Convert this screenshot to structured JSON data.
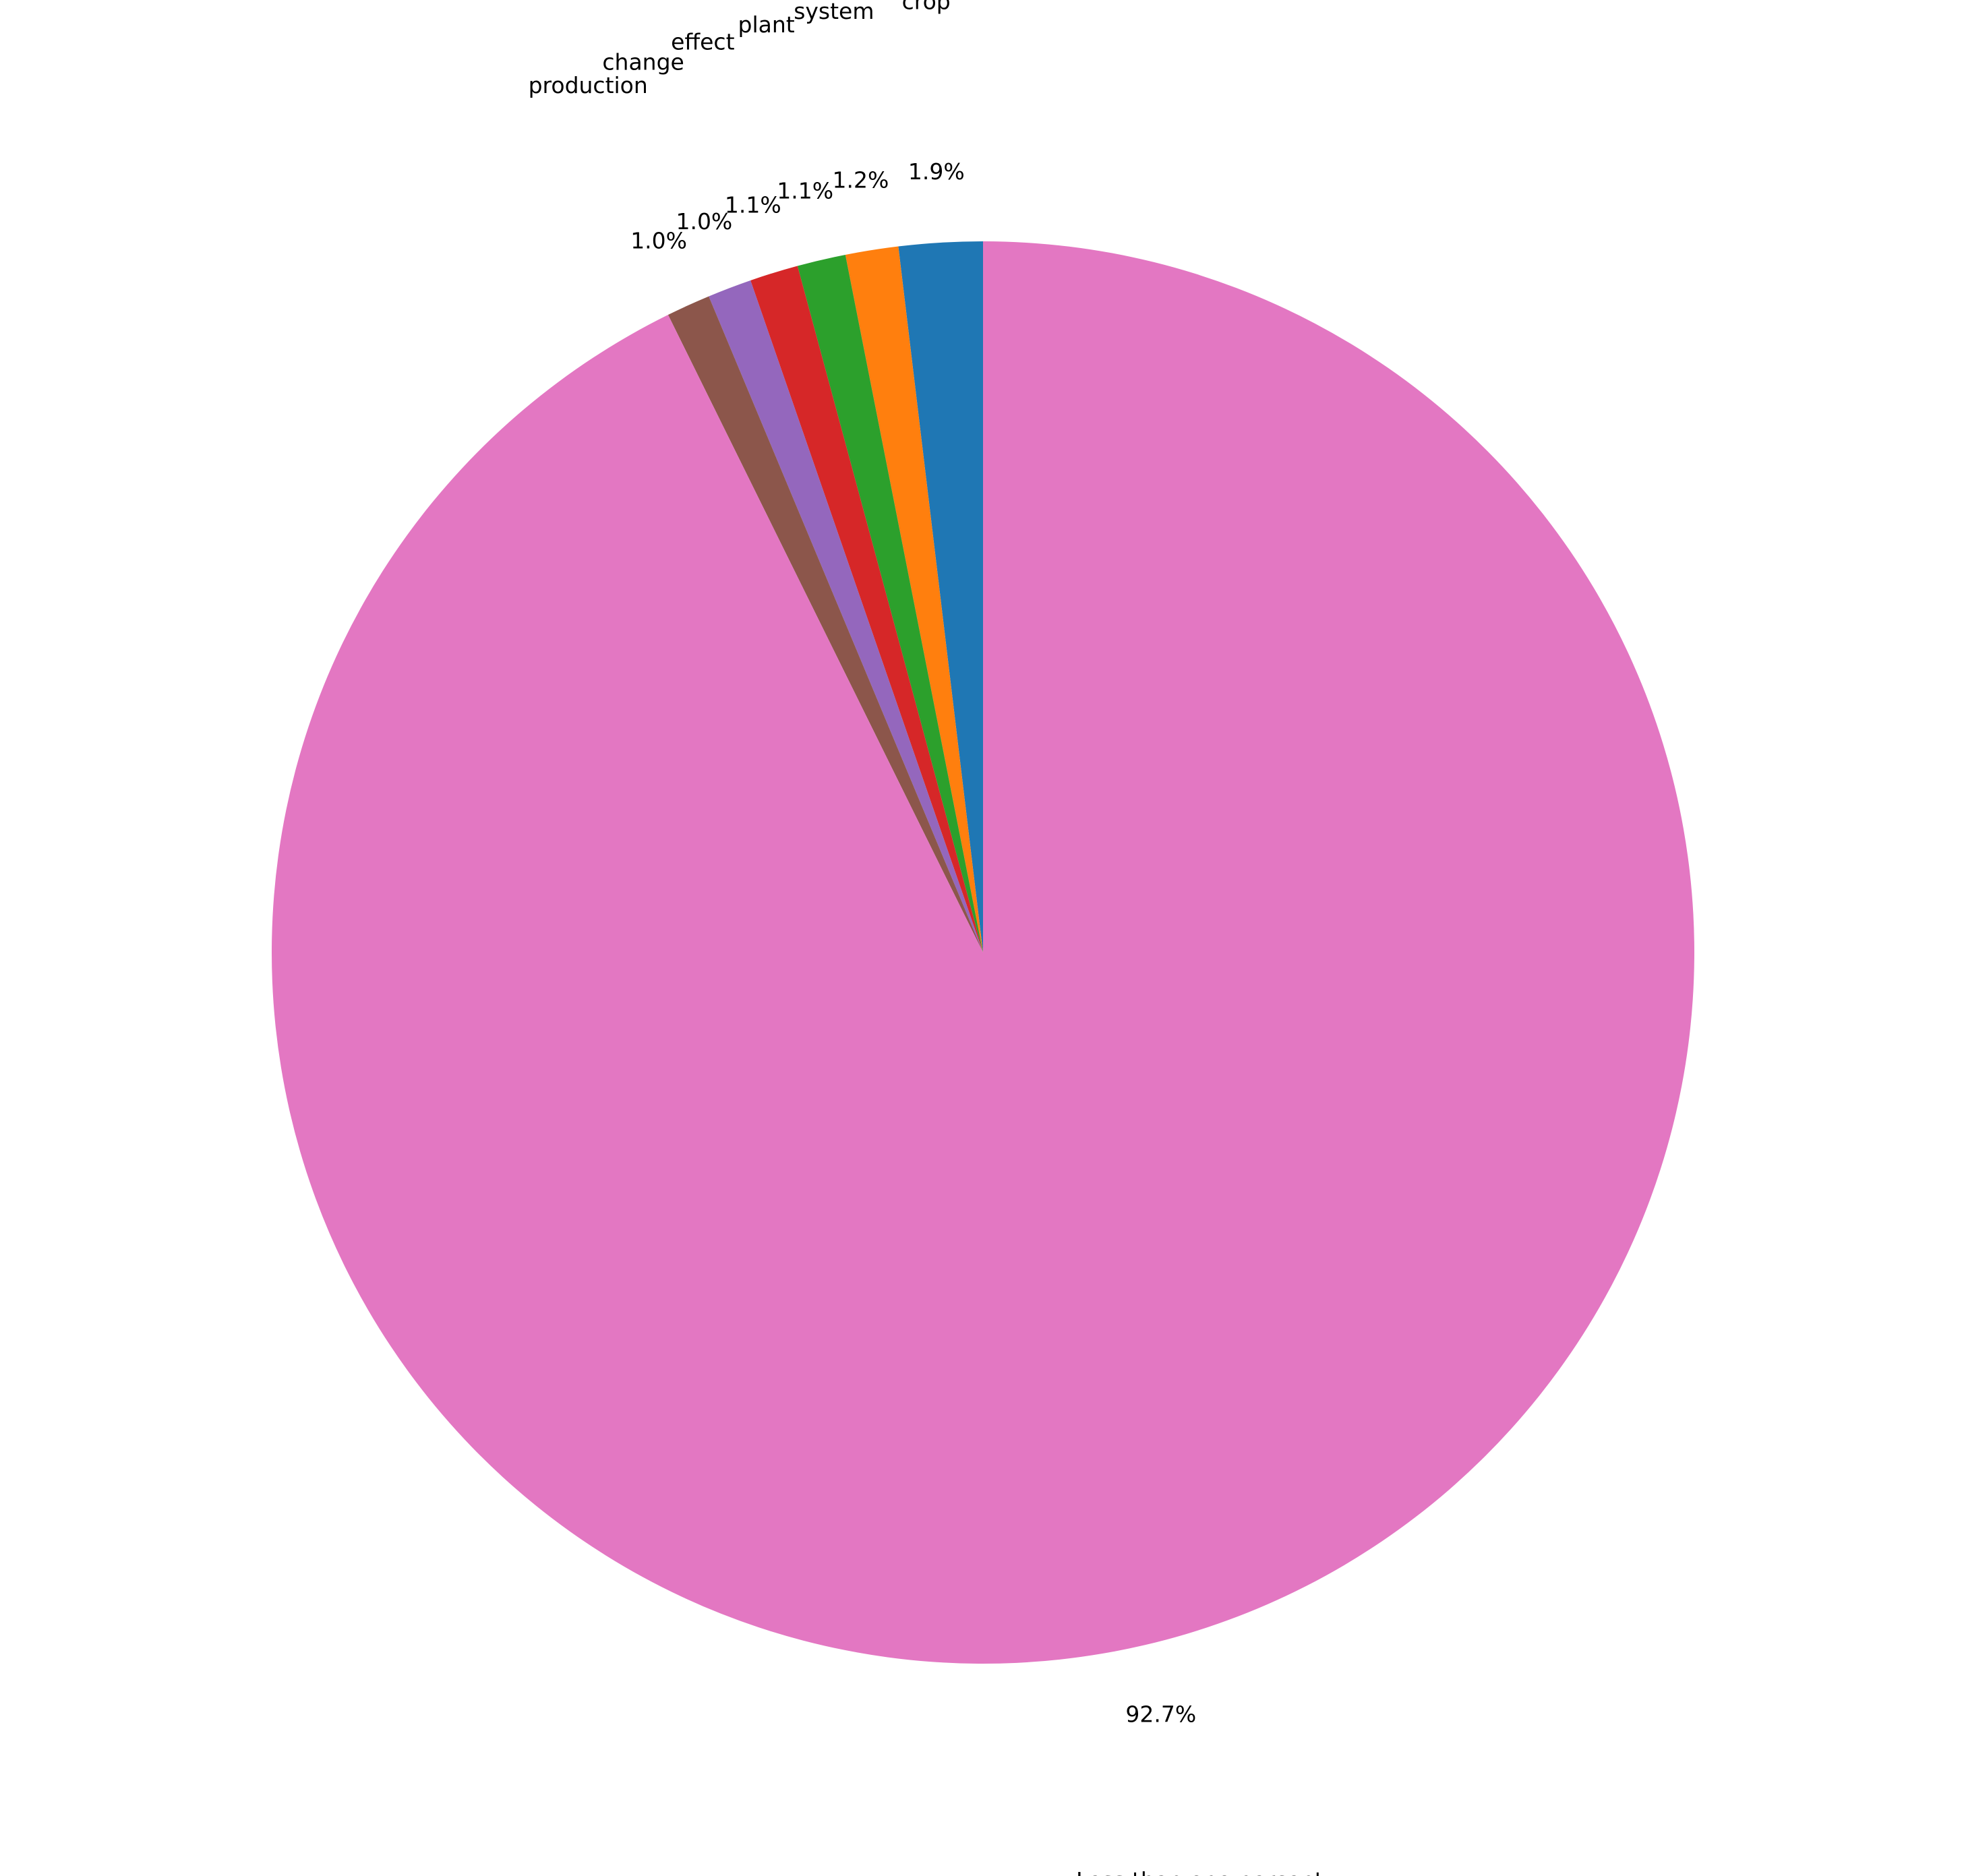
{
  "chart_data": {
    "type": "pie",
    "slices": [
      {
        "label": "crop",
        "value": 1.9,
        "pct_label": "1.9%",
        "color": "#1f77b4"
      },
      {
        "label": "system",
        "value": 1.2,
        "pct_label": "1.2%",
        "color": "#ff7f0e"
      },
      {
        "label": "plant",
        "value": 1.1,
        "pct_label": "1.1%",
        "color": "#2ca02c"
      },
      {
        "label": "effect",
        "value": 1.1,
        "pct_label": "1.1%",
        "color": "#d62728"
      },
      {
        "label": "change",
        "value": 1.0,
        "pct_label": "1.0%",
        "color": "#9467bd"
      },
      {
        "label": "production",
        "value": 1.0,
        "pct_label": "1.0%",
        "color": "#8c564b"
      },
      {
        "label": "Less than one percent",
        "value": 92.7,
        "pct_label": "92.7%",
        "color": "#e377c2"
      }
    ],
    "start_angle": "top",
    "direction": "counterclockwise"
  }
}
